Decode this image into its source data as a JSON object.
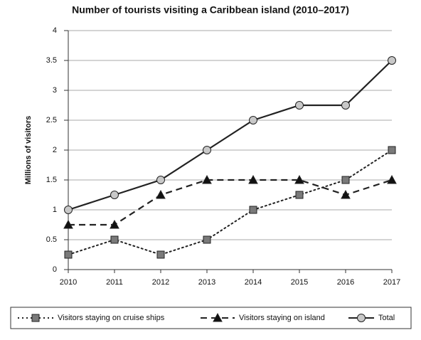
{
  "chart_data": {
    "type": "line",
    "title": "Number of tourists visiting a Caribbean island (2010–2017)",
    "y_label": "Millions of visitors",
    "categories": [
      "2010",
      "2011",
      "2012",
      "2013",
      "2014",
      "2015",
      "2016",
      "2017"
    ],
    "series": [
      {
        "name": "Visitors staying on cruise ships",
        "color": "#222222",
        "dash": "dotted",
        "marker": "square",
        "marker_color": "#7a7a7a",
        "values": [
          0.25,
          0.5,
          0.25,
          0.5,
          1,
          1.25,
          1.5,
          2
        ]
      },
      {
        "name": "Visitors staying on island",
        "color": "#222222",
        "dash": "dashed",
        "marker": "triangle",
        "marker_color": "#111111",
        "values": [
          0.75,
          0.75,
          1.25,
          1.5,
          1.5,
          1.5,
          1.25,
          1.5
        ]
      },
      {
        "name": "Total",
        "color": "#222222",
        "dash": "solid",
        "marker": "circle",
        "marker_color": "#c8c8c8",
        "values": [
          1,
          1.25,
          1.5,
          2,
          2.5,
          2.75,
          2.75,
          3.5
        ]
      }
    ],
    "ylim": [
      0,
      4
    ],
    "yticks": [
      0,
      0.5,
      1,
      1.5,
      2,
      2.5,
      3,
      3.5,
      4
    ],
    "grid": true,
    "legend": "bottom"
  }
}
